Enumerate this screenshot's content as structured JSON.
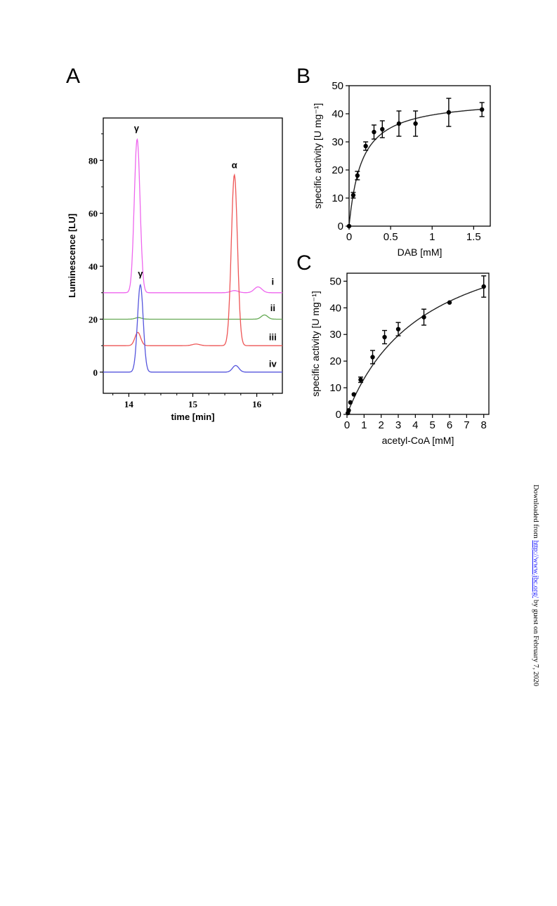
{
  "panels": {
    "a": "A",
    "b": "B",
    "c": "C"
  },
  "download_note": {
    "prefix": "Downloaded from ",
    "link": "http://www.jbc.org/",
    "suffix": " by guest on February 7, 2020"
  },
  "chart_data": [
    {
      "panel": "A",
      "type": "line",
      "xlabel": "time [min]",
      "ylabel": "Luminescence [LU]",
      "xlim": [
        13.6,
        16.4
      ],
      "ylim": [
        -8,
        96
      ],
      "x_ticks": [
        14,
        15,
        16
      ],
      "y_ticks": [
        0,
        20,
        40,
        60,
        80
      ],
      "colors": {
        "i": "#ee66ee",
        "ii": "#66aa55",
        "iii": "#ee5555",
        "iv": "#5555dd"
      },
      "series": [
        {
          "name": "i",
          "baseline": 30,
          "peaks": [
            [
              14.13,
              58,
              0.045
            ],
            [
              15.65,
              0.8,
              0.06
            ],
            [
              16.02,
              2.2,
              0.06
            ]
          ]
        },
        {
          "name": "ii",
          "baseline": 20,
          "peaks": [
            [
              14.15,
              0.6,
              0.05
            ],
            [
              16.12,
              1.6,
              0.05
            ]
          ]
        },
        {
          "name": "iii",
          "baseline": 10,
          "peaks": [
            [
              14.14,
              5,
              0.045
            ],
            [
              15.05,
              0.6,
              0.06
            ],
            [
              15.65,
              64.5,
              0.048
            ]
          ]
        },
        {
          "name": "iv",
          "baseline": 0,
          "peaks": [
            [
              14.18,
              33,
              0.045
            ],
            [
              15.67,
              2.5,
              0.05
            ]
          ]
        }
      ],
      "annotations": [
        {
          "text": "γ",
          "x": 14.12,
          "y": 91
        },
        {
          "text": "α",
          "x": 15.65,
          "y": 77
        },
        {
          "text": "γ",
          "x": 14.18,
          "y": 36
        },
        {
          "text": "i",
          "x": 16.25,
          "y": 33
        },
        {
          "text": "ii",
          "x": 16.25,
          "y": 23
        },
        {
          "text": "iii",
          "x": 16.25,
          "y": 12
        },
        {
          "text": "iv",
          "x": 16.25,
          "y": 2
        }
      ]
    },
    {
      "panel": "B",
      "type": "scatter",
      "xlabel": "DAB [mM]",
      "ylabel": "specific activity [U mg⁻¹]",
      "xlim": [
        0,
        1.7
      ],
      "ylim": [
        0,
        50
      ],
      "x_ticks": [
        0.0,
        0.5,
        1.0,
        1.5
      ],
      "y_ticks": [
        0,
        10,
        20,
        30,
        40,
        50
      ],
      "points": [
        {
          "x": 0,
          "y": 0,
          "err": 0
        },
        {
          "x": 0.05,
          "y": 11,
          "err": 1.0
        },
        {
          "x": 0.1,
          "y": 18,
          "err": 1.5
        },
        {
          "x": 0.2,
          "y": 28.5,
          "err": 1.5
        },
        {
          "x": 0.3,
          "y": 33.5,
          "err": 2.5
        },
        {
          "x": 0.4,
          "y": 34.5,
          "err": 3.0
        },
        {
          "x": 0.6,
          "y": 36.5,
          "err": 4.5
        },
        {
          "x": 0.8,
          "y": 36.5,
          "err": 4.5
        },
        {
          "x": 1.2,
          "y": 40.5,
          "err": 5.0
        },
        {
          "x": 1.6,
          "y": 41.5,
          "err": 2.5
        }
      ],
      "fit": {
        "model": "michaelis-menten",
        "vmax": 45.5,
        "km": 0.15
      }
    },
    {
      "panel": "C",
      "type": "scatter",
      "xlabel": "acetyl-CoA [mM]",
      "ylabel": "specific activity [U mg⁻¹]",
      "xlim": [
        0,
        8.3
      ],
      "ylim": [
        0,
        53
      ],
      "x_ticks": [
        0,
        1,
        2,
        3,
        4,
        5,
        6,
        7,
        8
      ],
      "y_ticks": [
        0,
        10,
        20,
        30,
        40,
        50
      ],
      "points": [
        {
          "x": 0.05,
          "y": 0.5,
          "err": 0
        },
        {
          "x": 0.1,
          "y": 1.5,
          "err": 0
        },
        {
          "x": 0.2,
          "y": 4.5,
          "err": 0
        },
        {
          "x": 0.4,
          "y": 7.5,
          "err": 0
        },
        {
          "x": 0.8,
          "y": 13,
          "err": 1.0
        },
        {
          "x": 1.5,
          "y": 21.5,
          "err": 2.5
        },
        {
          "x": 2.2,
          "y": 29,
          "err": 2.5
        },
        {
          "x": 3.0,
          "y": 32,
          "err": 2.5
        },
        {
          "x": 4.5,
          "y": 36.5,
          "err": 3.0
        },
        {
          "x": 6.0,
          "y": 42,
          "err": 0
        },
        {
          "x": 8.0,
          "y": 48,
          "err": 4.0
        }
      ],
      "fit": {
        "model": "michaelis-menten",
        "vmax": 75,
        "km": 4.6
      }
    }
  ]
}
